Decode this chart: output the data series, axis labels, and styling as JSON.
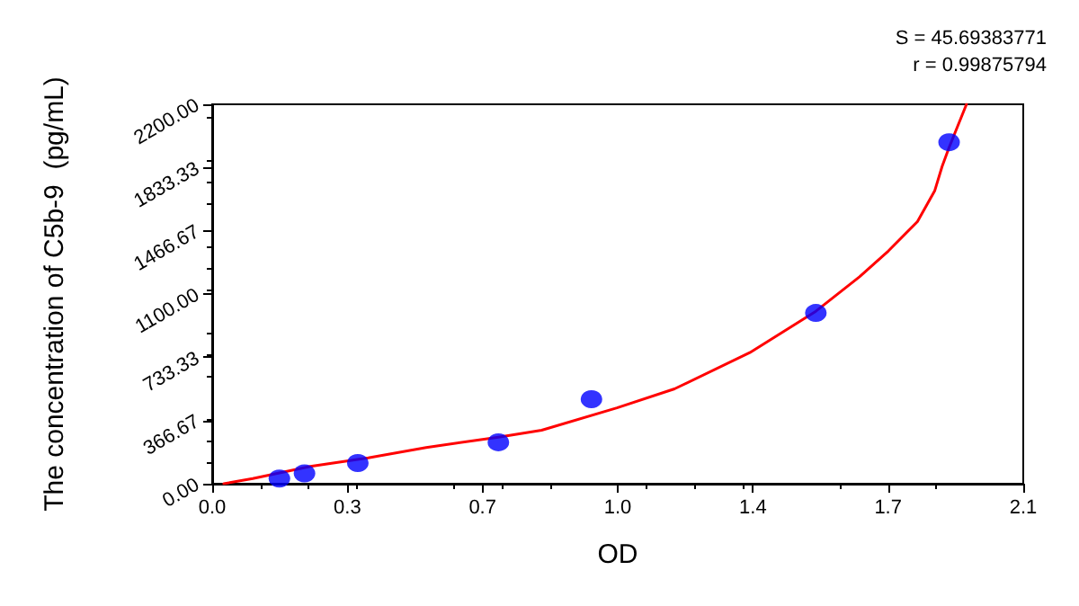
{
  "chart_data": {
    "type": "scatter",
    "xlabel": "OD",
    "ylabel": "The concentration of C5b-9  (pg/mL)",
    "annotations": [
      "S = 45.69383771",
      "r = 0.99875794"
    ],
    "series": [
      {
        "color": "#0000ff",
        "marker": "circle",
        "x": [
          0.174,
          0.239,
          0.377,
          0.741,
          0.982,
          1.563,
          1.908
        ],
        "values": [
          30,
          60,
          120,
          240,
          490,
          990,
          1980
        ]
      },
      {
        "type": "line",
        "color": "#ff0000",
        "marker": "none",
        "line_style": "solid",
        "x": [
          0.03,
          0.105,
          0.254,
          0.404,
          0.554,
          0.741,
          0.853,
          1.048,
          1.197,
          1.392,
          1.563,
          1.676,
          1.751,
          1.826,
          1.871,
          1.89,
          1.908,
          1.953
        ],
        "values": [
          0,
          30,
          100,
          150,
          210,
          270,
          310,
          440,
          550,
          760,
          1000,
          1200,
          1350,
          1520,
          1700,
          1840,
          1950,
          2200
        ]
      }
    ],
    "xlim": [
      0,
      2.1
    ],
    "xticks": [
      {
        "value": 0,
        "label": "0.0"
      },
      {
        "value": 0.35,
        "label": "0.3"
      },
      0.7,
      {
        "value": 1.05,
        "label": "1.0"
      },
      1.4,
      {
        "value": 1.75,
        "label": "1.7"
      },
      2.1
    ],
    "ylim": [
      0,
      2200
    ],
    "yticks": [
      {
        "value": 0,
        "label": "0.00"
      },
      366.67,
      733.33,
      {
        "value": 1100,
        "label": "1100.00"
      },
      1466.67,
      1833.33,
      {
        "value": 2200,
        "label": "2200.00"
      }
    ],
    "grid": false
  }
}
